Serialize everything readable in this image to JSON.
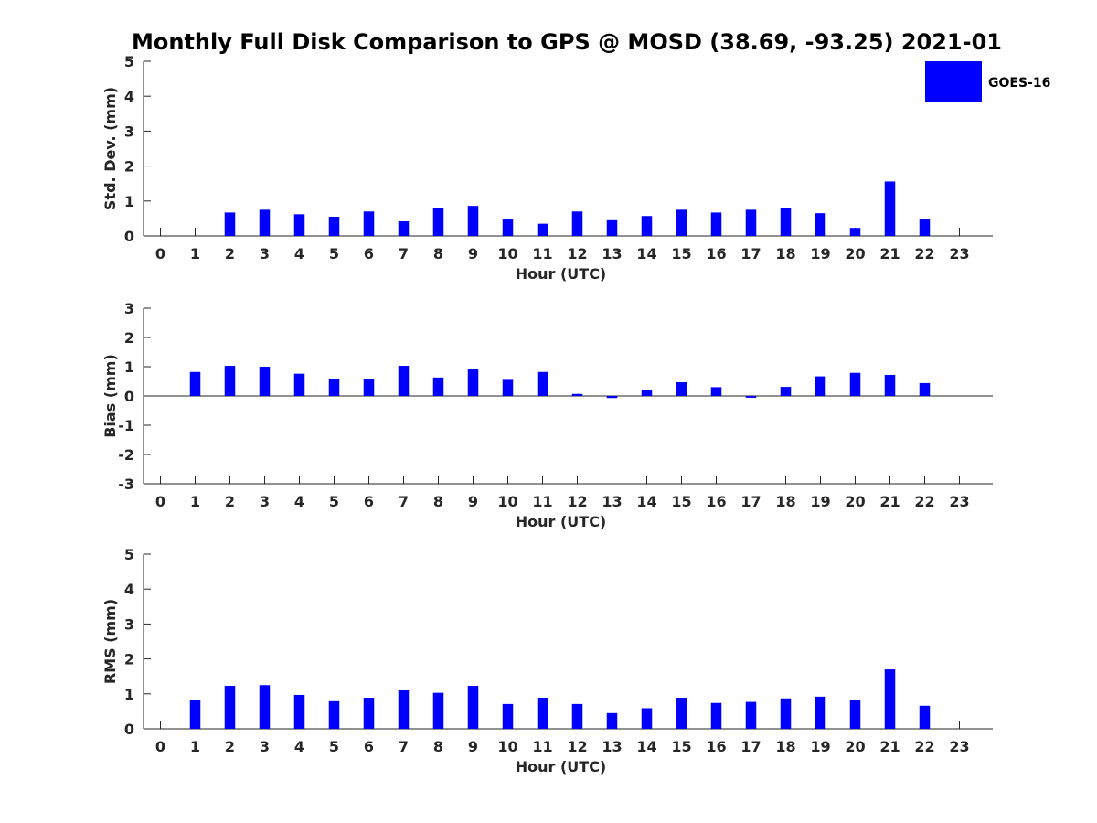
{
  "title": "Monthly Full Disk Comparison to GPS @ MOSD (38.69, -93.25) 2021-01",
  "legend": {
    "label": "GOES-16",
    "position": "top-right"
  },
  "colors": {
    "bar": "#0000ff",
    "axis": "#262626"
  },
  "chart_data": [
    {
      "type": "bar",
      "name": "std-dev",
      "xlabel": "Hour (UTC)",
      "ylabel": "Std. Dev. (mm)",
      "ylim": [
        0,
        5
      ],
      "yticks": [
        0,
        1,
        2,
        3,
        4,
        5
      ],
      "categories": [
        0,
        1,
        2,
        3,
        4,
        5,
        6,
        7,
        8,
        9,
        10,
        11,
        12,
        13,
        14,
        15,
        16,
        17,
        18,
        19,
        20,
        21,
        22,
        23
      ],
      "series": [
        {
          "name": "GOES-16",
          "values": [
            null,
            null,
            0.67,
            0.75,
            0.62,
            0.55,
            0.7,
            0.42,
            0.8,
            0.86,
            0.47,
            0.35,
            0.7,
            0.45,
            0.57,
            0.75,
            0.67,
            0.75,
            0.8,
            0.65,
            0.23,
            1.56,
            0.47,
            null
          ]
        }
      ]
    },
    {
      "type": "bar",
      "name": "bias",
      "xlabel": "Hour (UTC)",
      "ylabel": "Bias (mm)",
      "ylim": [
        -3,
        3
      ],
      "yticks": [
        -3,
        -2,
        -1,
        0,
        1,
        2,
        3
      ],
      "zero_line": true,
      "categories": [
        0,
        1,
        2,
        3,
        4,
        5,
        6,
        7,
        8,
        9,
        10,
        11,
        12,
        13,
        14,
        15,
        16,
        17,
        18,
        19,
        20,
        21,
        22,
        23
      ],
      "series": [
        {
          "name": "GOES-16",
          "values": [
            null,
            0.82,
            1.03,
            1.0,
            0.76,
            0.57,
            0.58,
            1.03,
            0.63,
            0.92,
            0.55,
            0.82,
            0.07,
            -0.07,
            0.19,
            0.47,
            0.3,
            -0.06,
            0.31,
            0.67,
            0.79,
            0.72,
            0.44,
            null
          ]
        }
      ]
    },
    {
      "type": "bar",
      "name": "rms",
      "xlabel": "Hour (UTC)",
      "ylabel": "RMS (mm)",
      "ylim": [
        0,
        5
      ],
      "yticks": [
        0,
        1,
        2,
        3,
        4,
        5
      ],
      "categories": [
        0,
        1,
        2,
        3,
        4,
        5,
        6,
        7,
        8,
        9,
        10,
        11,
        12,
        13,
        14,
        15,
        16,
        17,
        18,
        19,
        20,
        21,
        22,
        23
      ],
      "series": [
        {
          "name": "GOES-16",
          "values": [
            null,
            0.82,
            1.23,
            1.25,
            0.97,
            0.79,
            0.89,
            1.1,
            1.03,
            1.23,
            0.71,
            0.89,
            0.71,
            0.45,
            0.59,
            0.89,
            0.74,
            0.77,
            0.87,
            0.92,
            0.82,
            1.7,
            0.66,
            null
          ]
        }
      ]
    }
  ]
}
